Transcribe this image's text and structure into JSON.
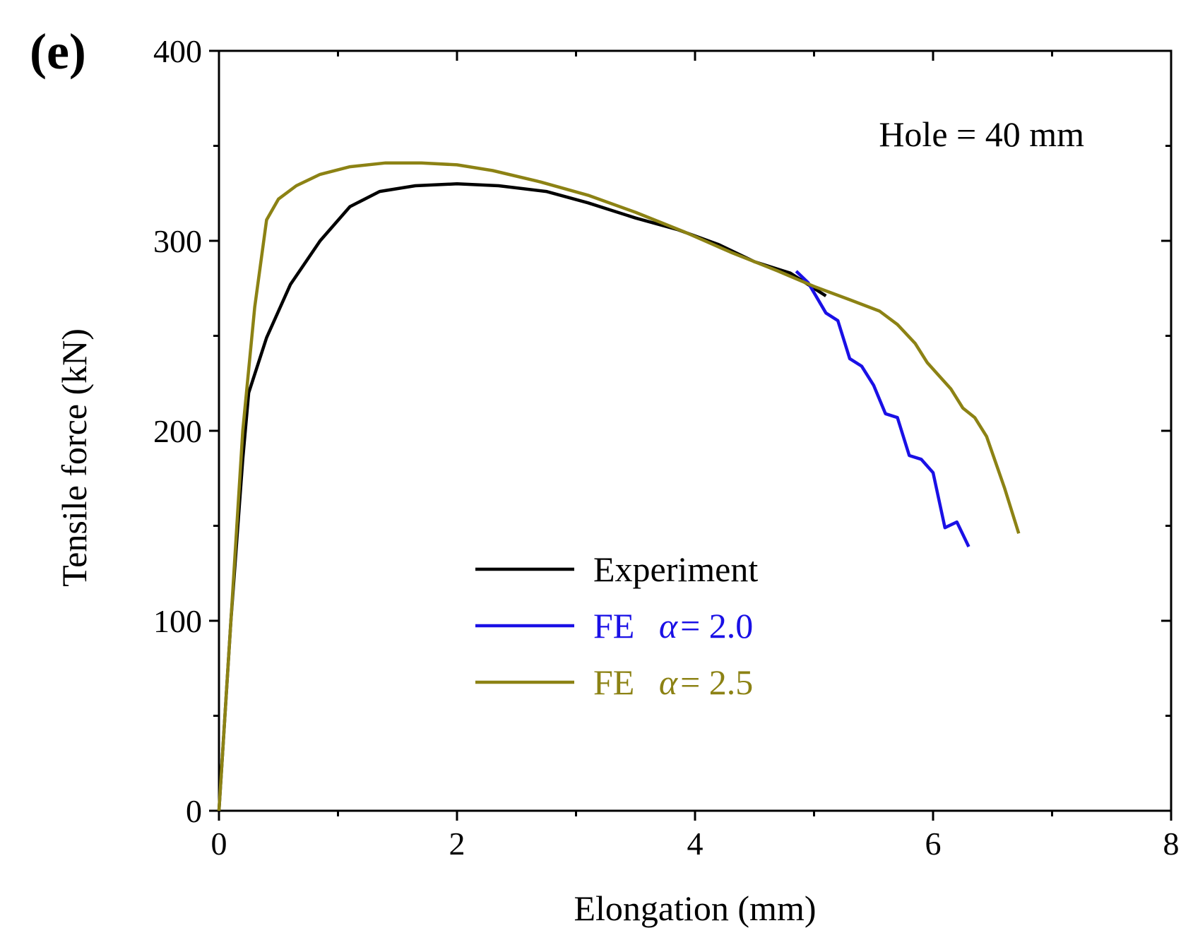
{
  "chart_data": {
    "type": "line",
    "panel_label": "(e)",
    "title": "",
    "xlabel": "Elongation (mm)",
    "ylabel": "Tensile force (kN)",
    "xlim": [
      0,
      8
    ],
    "ylim": [
      0,
      400
    ],
    "x_major_ticks": [
      0,
      2,
      4,
      6,
      8
    ],
    "x_tick_labels": [
      "0",
      "2",
      "4",
      "6",
      "8"
    ],
    "x_minor_ticks": [
      1,
      3,
      5,
      7
    ],
    "y_major_ticks": [
      0,
      100,
      200,
      300,
      400
    ],
    "y_tick_labels": [
      "0",
      "100",
      "200",
      "300",
      "400"
    ],
    "y_minor_ticks": [
      50,
      150,
      250,
      350
    ],
    "grid": false,
    "legend_position": "center",
    "annotation": "Hole = 40 mm",
    "series": [
      {
        "name": "Experiment",
        "label_prefix": "Experiment",
        "label_greek": "",
        "label_suffix": "",
        "color": "#000000",
        "x": [
          0,
          0.1,
          0.2,
          0.25,
          0.4,
          0.6,
          0.85,
          1.1,
          1.35,
          1.65,
          2.0,
          2.35,
          2.75,
          3.1,
          3.5,
          3.85,
          4.2,
          4.5,
          4.8,
          5.1
        ],
        "y": [
          0,
          100,
          185,
          220,
          249,
          277,
          300,
          318,
          326,
          329,
          330,
          329,
          326,
          320,
          312,
          306,
          298,
          289,
          283,
          271
        ]
      },
      {
        "name": "FE α = 2.0",
        "label_prefix": "FE ",
        "label_greek": "α",
        "label_suffix": "= 2.0",
        "color": "#1a10e6",
        "x": [
          4.85,
          4.95,
          5.1,
          5.2,
          5.3,
          5.4,
          5.5,
          5.6,
          5.7,
          5.8,
          5.9,
          6.0,
          6.1,
          6.2,
          6.3
        ],
        "y": [
          284,
          278,
          262,
          258,
          238,
          234,
          224,
          209,
          207,
          187,
          185,
          178,
          149,
          152,
          139
        ]
      },
      {
        "name": "FE α = 2.5",
        "label_prefix": "FE ",
        "label_greek": "α",
        "label_suffix": "= 2.5",
        "color": "#8c8214",
        "x": [
          0,
          0.1,
          0.2,
          0.3,
          0.4,
          0.5,
          0.65,
          0.85,
          1.1,
          1.4,
          1.7,
          2.0,
          2.3,
          2.7,
          3.1,
          3.5,
          3.9,
          4.3,
          4.7,
          5.0,
          5.3,
          5.55,
          5.7,
          5.85,
          5.95,
          6.05,
          6.15,
          6.25,
          6.35,
          6.45,
          6.6,
          6.72
        ],
        "y": [
          0,
          100,
          200,
          265,
          311,
          322,
          329,
          335,
          339,
          341,
          341,
          340,
          337,
          331,
          324,
          315,
          305,
          294,
          284,
          276,
          269,
          263,
          256,
          246,
          236,
          229,
          222,
          212,
          207,
          197,
          170,
          146
        ]
      }
    ]
  }
}
